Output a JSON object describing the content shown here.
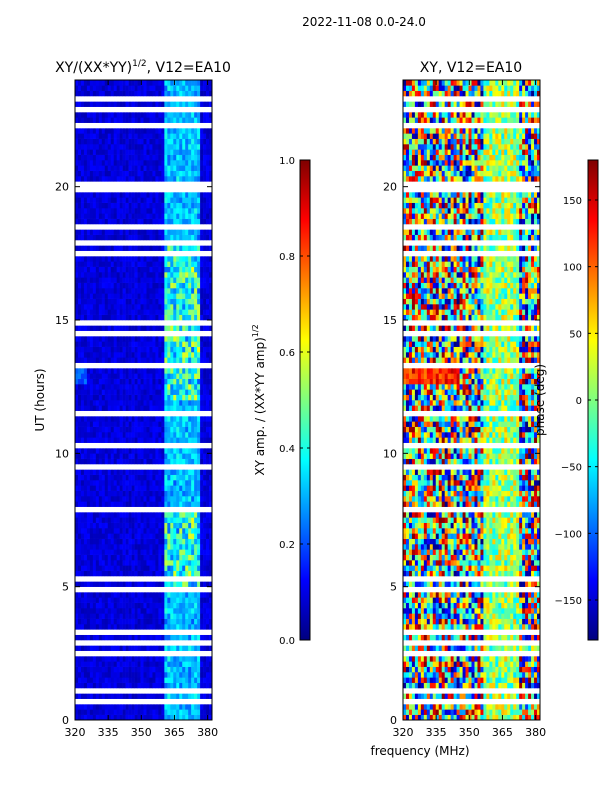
{
  "chart_data": {
    "suptitle": "2022-11-08 0.0-24.0",
    "xlabel_shared": "frequency (MHz)",
    "panels": [
      {
        "type": "heatmap",
        "title": "XY/(XX*YY)",
        "title_exponent": "1/2",
        "title_suffix": ", V12=EA10",
        "xlabel": "",
        "ylabel": "UT (hours)",
        "xlim": [
          320,
          382
        ],
        "ylim": [
          0,
          24
        ],
        "xticks": [
          320,
          335,
          350,
          365,
          380
        ],
        "yticks": [
          0,
          5,
          10,
          15,
          20
        ],
        "colormap": "jet",
        "colorbar": {
          "label": "XY amp. / (XX*YY amp)",
          "label_exponent": "1/2",
          "range": [
            0.0,
            1.0
          ],
          "ticks": [
            "0.0",
            "0.2",
            "0.4",
            "0.6",
            "0.8",
            "1.0"
          ]
        }
      },
      {
        "type": "heatmap",
        "title": "XY, V12=EA10",
        "xlabel": "",
        "ylabel": "",
        "xlim": [
          320,
          382
        ],
        "ylim": [
          0,
          24
        ],
        "xticks": [
          320,
          335,
          350,
          365,
          380
        ],
        "yticks": [
          0,
          5,
          10,
          15,
          20
        ],
        "colormap": "jet",
        "colorbar": {
          "label": "phase (deg)",
          "range": [
            -180,
            180
          ],
          "ticks": [
            "-150",
            "-100",
            "-50",
            "0",
            "50",
            "100",
            "150"
          ]
        }
      }
    ]
  }
}
